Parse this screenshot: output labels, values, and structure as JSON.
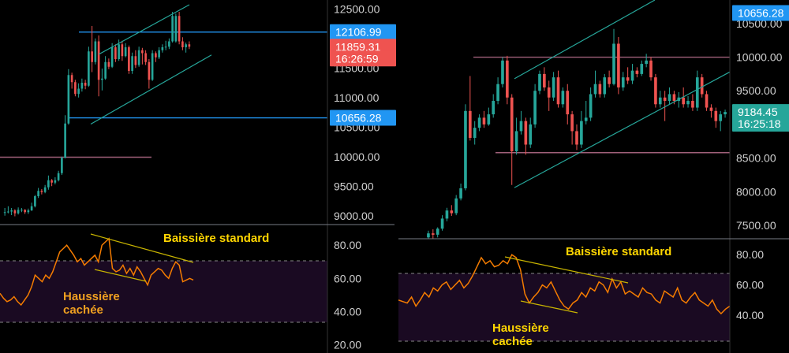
{
  "colors": {
    "background": "#000000",
    "axis_text": "#d0d0d0",
    "divider": "#787b86",
    "up": "#26a69a",
    "down": "#ef5350",
    "rsi": "#f57c00",
    "rsi_band": "#1a0a22",
    "trend": "#26a69a",
    "level_blue": "#2196f3",
    "level_purple": "#a0607a",
    "annotation": "#ffd600"
  },
  "chart_data": [
    {
      "type": "candlestick",
      "panel": "left-price",
      "ylim": [
        8850,
        12650
      ],
      "yticks": [
        12500,
        12000,
        11500,
        11000,
        10500,
        10000,
        9500,
        9000
      ],
      "ytick_labels": [
        "12500.00",
        "12000.00",
        "11500.00",
        "11000.00",
        "10500.00",
        "10000.00",
        "9500.00",
        "9000.00"
      ],
      "price_tags": [
        {
          "value": 12106.99,
          "label": "12106.99",
          "style": "blue"
        },
        {
          "value": 11859.31,
          "label": "11859.31",
          "style": "red"
        },
        {
          "value": 11660,
          "label": "16:26:59",
          "style": "red"
        },
        {
          "value": 10656.28,
          "label": "10656.28",
          "style": "blue"
        }
      ],
      "levels": [
        {
          "value": 12106.99,
          "from": 100,
          "to": 415,
          "color": "blue"
        },
        {
          "value": 10656.28,
          "from": 88,
          "to": 415,
          "color": "blue"
        },
        {
          "value": 9990,
          "from": 0,
          "to": 192,
          "color": "purple"
        }
      ],
      "channels": [
        {
          "a": [
            125,
            11730
          ],
          "b": [
            240,
            12570
          ]
        },
        {
          "a": [
            115,
            10550
          ],
          "b": [
            268,
            11720
          ]
        }
      ],
      "candles": [
        [
          0,
          9050,
          9060,
          9130,
          9000
        ],
        [
          1,
          9070,
          9070,
          9160,
          9040
        ],
        [
          2,
          9070,
          9090,
          9130,
          9010
        ],
        [
          3,
          9090,
          9040,
          9110,
          8990
        ],
        [
          4,
          9040,
          9100,
          9140,
          9020
        ],
        [
          5,
          9100,
          9100,
          9130,
          9060
        ],
        [
          6,
          9100,
          9060,
          9110,
          9030
        ],
        [
          7,
          9060,
          9090,
          9120,
          9030
        ],
        [
          8,
          9090,
          9160,
          9220,
          9080
        ],
        [
          9,
          9160,
          9330,
          9350,
          9140
        ],
        [
          10,
          9330,
          9420,
          9470,
          9300
        ],
        [
          11,
          9420,
          9400,
          9450,
          9360
        ],
        [
          12,
          9400,
          9480,
          9520,
          9380
        ],
        [
          13,
          9480,
          9600,
          9680,
          9440
        ],
        [
          14,
          9600,
          9560,
          9620,
          9500
        ],
        [
          15,
          9560,
          9600,
          9650,
          9530
        ],
        [
          16,
          9600,
          9720,
          9760,
          9580
        ],
        [
          17,
          9720,
          9980,
          10000,
          9690
        ],
        [
          18,
          9980,
          10560,
          10700,
          9970
        ],
        [
          19,
          10560,
          11380,
          11480,
          10540
        ],
        [
          20,
          11380,
          11260,
          11420,
          11150
        ],
        [
          21,
          11260,
          11060,
          11300,
          11020
        ],
        [
          22,
          11060,
          11150,
          11240,
          11000
        ],
        [
          23,
          11150,
          11250,
          11320,
          11100
        ],
        [
          24,
          11250,
          11200,
          11300,
          11140
        ],
        [
          25,
          11200,
          11780,
          11860,
          11180
        ],
        [
          26,
          11780,
          11600,
          12210,
          11430
        ],
        [
          27,
          11600,
          11950,
          12000,
          11560
        ],
        [
          28,
          11950,
          11300,
          12050,
          11020
        ],
        [
          29,
          11300,
          11320,
          11490,
          11120
        ],
        [
          30,
          11320,
          11600,
          11700,
          11300
        ],
        [
          31,
          11600,
          11520,
          11660,
          11480
        ],
        [
          32,
          11520,
          11850,
          11920,
          11500
        ],
        [
          33,
          11850,
          11650,
          11900,
          11600
        ],
        [
          34,
          11650,
          11900,
          11980,
          11620
        ],
        [
          35,
          11900,
          11700,
          11960,
          11620
        ],
        [
          36,
          11700,
          11850,
          11920,
          11680
        ],
        [
          37,
          11850,
          11450,
          11880,
          11400
        ],
        [
          38,
          11450,
          11700,
          11760,
          11400
        ],
        [
          39,
          11700,
          11550,
          11800,
          11500
        ],
        [
          40,
          11550,
          11800,
          11860,
          11520
        ],
        [
          41,
          11800,
          11750,
          11840,
          11560
        ],
        [
          42,
          11750,
          11600,
          11800,
          11550
        ],
        [
          43,
          11600,
          11300,
          11650,
          11150
        ],
        [
          44,
          11300,
          11750,
          11800,
          11280
        ],
        [
          45,
          11750,
          11680,
          11780,
          11600
        ],
        [
          46,
          11680,
          11800,
          11850,
          11650
        ],
        [
          47,
          11800,
          11850,
          11900,
          11760
        ],
        [
          48,
          11850,
          11860,
          11960,
          11800
        ],
        [
          49,
          11860,
          11950,
          12000,
          11820
        ],
        [
          50,
          11950,
          12380,
          12450,
          11930
        ],
        [
          51,
          11950,
          12380,
          12420,
          11930
        ],
        [
          52,
          12380,
          11950,
          12450,
          11900
        ],
        [
          53,
          11950,
          11850,
          12020,
          11800
        ],
        [
          54,
          11850,
          11900,
          11930,
          11760
        ],
        [
          55,
          11900,
          11860,
          11950,
          11820
        ]
      ]
    },
    {
      "type": "line",
      "panel": "left-rsi",
      "ylim": [
        15,
        92
      ],
      "yticks": [
        80,
        60,
        40,
        20
      ],
      "ytick_labels": [
        "80.00",
        "60.00",
        "40.00",
        "20.00"
      ],
      "bands": [
        70,
        30
      ],
      "values": [
        51,
        48,
        46,
        47,
        49,
        46,
        44,
        47,
        50,
        55,
        62,
        60,
        58,
        62,
        60,
        64,
        70,
        76,
        78,
        80,
        77,
        74,
        70,
        72,
        68,
        70,
        72,
        74,
        70,
        80,
        82,
        84,
        66,
        64,
        65,
        68,
        63,
        66,
        62,
        67,
        64,
        60,
        56,
        62,
        64,
        66,
        65,
        62,
        60,
        66,
        70,
        68,
        58,
        59,
        60,
        59
      ],
      "annotations": [
        {
          "text": "Baissière standard",
          "color": "yellow"
        },
        {
          "text": "Haussière",
          "color": "orange"
        },
        {
          "text": "cachée",
          "color": "orange"
        }
      ]
    },
    {
      "type": "candlestick",
      "panel": "right-price",
      "ylim": [
        7300,
        10850
      ],
      "yticks": [
        10500,
        10000,
        9500,
        9000,
        8500,
        8000,
        7500
      ],
      "ytick_labels": [
        "10500.00",
        "10000.00",
        "9500.00",
        "9000.00",
        "8500.00",
        "8000.00",
        "7500.00"
      ],
      "price_tags": [
        {
          "value": 10656.28,
          "label": "10656.28",
          "style": "blue"
        },
        {
          "value": 9184.45,
          "label": "9184.45",
          "style": "green"
        },
        {
          "value": 9010,
          "label": "16:25:18",
          "style": "green"
        }
      ],
      "levels": [
        {
          "value": 10000,
          "from": 600,
          "to": 925,
          "color": "purple"
        },
        {
          "value": 8580,
          "from": 628,
          "to": 925,
          "color": "purple"
        }
      ],
      "channels": [
        {
          "a": [
            652,
            8060
          ],
          "b": [
            925,
            9780
          ]
        },
        {
          "a": [
            652,
            9680
          ],
          "b": [
            830,
            10850
          ]
        }
      ],
      "candles": [
        [
          0,
          7320,
          7380,
          7420,
          7300
        ],
        [
          1,
          7380,
          7360,
          7440,
          7300
        ],
        [
          2,
          7360,
          7450,
          7470,
          7320
        ],
        [
          3,
          7450,
          7600,
          7650,
          7420
        ],
        [
          4,
          7600,
          7720,
          7760,
          7560
        ],
        [
          5,
          7720,
          7680,
          7800,
          7640
        ],
        [
          6,
          7680,
          7900,
          7950,
          7650
        ],
        [
          7,
          7900,
          8050,
          8120,
          7870
        ],
        [
          8,
          8050,
          9200,
          9300,
          8020
        ],
        [
          9,
          9200,
          8800,
          9720,
          8760
        ],
        [
          10,
          8800,
          8950,
          9050,
          8700
        ],
        [
          11,
          8950,
          9100,
          9150,
          8900
        ],
        [
          12,
          9100,
          9000,
          9200,
          8950
        ],
        [
          13,
          9000,
          9150,
          9250,
          8980
        ],
        [
          14,
          9150,
          9350,
          9450,
          9100
        ],
        [
          15,
          9350,
          9600,
          9700,
          9300
        ],
        [
          16,
          9600,
          9950,
          10000,
          9550
        ],
        [
          17,
          9950,
          9400,
          10020,
          9300
        ],
        [
          18,
          9400,
          8600,
          9450,
          8100
        ],
        [
          19,
          8600,
          8900,
          9100,
          8550
        ],
        [
          20,
          8900,
          9050,
          9200,
          8850
        ],
        [
          21,
          9050,
          8700,
          9100,
          8550
        ],
        [
          22,
          8700,
          9000,
          9100,
          8650
        ],
        [
          23,
          9000,
          9500,
          9600,
          8950
        ],
        [
          24,
          9500,
          9750,
          9800,
          9450
        ],
        [
          25,
          9750,
          9550,
          9850,
          9500
        ],
        [
          26,
          9550,
          9400,
          9650,
          9200
        ],
        [
          27,
          9400,
          9700,
          9780,
          9350
        ],
        [
          28,
          9700,
          9300,
          9800,
          9250
        ],
        [
          29,
          9300,
          9500,
          9550,
          9250
        ],
        [
          30,
          9500,
          9150,
          9600,
          9000
        ],
        [
          31,
          9150,
          8900,
          9200,
          8700
        ],
        [
          32,
          8900,
          8700,
          9000,
          8620
        ],
        [
          33,
          8700,
          9050,
          9200,
          8650
        ],
        [
          34,
          9050,
          9100,
          9350,
          9000
        ],
        [
          35,
          9100,
          9450,
          9550,
          9050
        ],
        [
          36,
          9450,
          9600,
          9800,
          9400
        ],
        [
          37,
          9600,
          9450,
          9650,
          9400
        ],
        [
          38,
          9450,
          9700,
          9750,
          9400
        ],
        [
          39,
          9700,
          9600,
          9800,
          9550
        ],
        [
          40,
          9600,
          10200,
          10420,
          9580
        ],
        [
          41,
          10200,
          9550,
          10300,
          9450
        ],
        [
          42,
          9550,
          9700,
          9780,
          9500
        ],
        [
          43,
          9700,
          9650,
          9850,
          9600
        ],
        [
          44,
          9650,
          9800,
          9900,
          9600
        ],
        [
          45,
          9800,
          9750,
          9850,
          9700
        ],
        [
          46,
          9750,
          9900,
          9950,
          9720
        ],
        [
          47,
          9900,
          9950,
          10050,
          9850
        ],
        [
          48,
          9950,
          9700,
          10000,
          9650
        ],
        [
          49,
          9700,
          9300,
          9750,
          9250
        ],
        [
          50,
          9300,
          9400,
          9500,
          9250
        ],
        [
          51,
          9400,
          9350,
          9500,
          9050
        ],
        [
          52,
          9350,
          9450,
          9550,
          9300
        ],
        [
          53,
          9450,
          9350,
          9500,
          9300
        ],
        [
          54,
          9350,
          9400,
          9480,
          9250
        ],
        [
          55,
          9400,
          9300,
          9550,
          9250
        ],
        [
          56,
          9300,
          9350,
          9420,
          9250
        ],
        [
          57,
          9350,
          9250,
          9450,
          9200
        ],
        [
          58,
          9250,
          9700,
          9800,
          9200
        ],
        [
          59,
          9700,
          9450,
          9750,
          9400
        ],
        [
          60,
          9450,
          9250,
          9500,
          9200
        ],
        [
          61,
          9250,
          9200,
          9300,
          9100
        ],
        [
          62,
          9200,
          9050,
          9250,
          8950
        ],
        [
          63,
          9050,
          9150,
          9200,
          8900
        ],
        [
          64,
          9150,
          9185,
          9220,
          9100
        ]
      ]
    },
    {
      "type": "line",
      "panel": "right-rsi",
      "ylim": [
        15,
        90
      ],
      "yticks": [
        80,
        60,
        40
      ],
      "ytick_labels": [
        "80.00",
        "60.00",
        "40.00"
      ],
      "bands": [
        70,
        30
      ],
      "values": [
        50,
        49,
        48,
        52,
        46,
        50,
        55,
        52,
        58,
        56,
        60,
        62,
        57,
        60,
        63,
        58,
        61,
        66,
        72,
        78,
        74,
        76,
        72,
        73,
        76,
        74,
        80,
        78,
        70,
        54,
        48,
        52,
        55,
        60,
        58,
        62,
        56,
        50,
        46,
        44,
        48,
        50,
        55,
        52,
        58,
        56,
        62,
        60,
        55,
        64,
        58,
        62,
        54,
        56,
        54,
        52,
        58,
        55,
        54,
        50,
        48,
        56,
        54,
        52,
        58,
        50,
        48,
        52,
        55,
        50,
        48,
        46,
        50,
        44,
        41,
        44,
        46
      ],
      "annotations": [
        {
          "text": "Baissière standard",
          "color": "yellow"
        },
        {
          "text": "Haussière",
          "color": "yellow"
        },
        {
          "text": "cachée",
          "color": "yellow"
        }
      ]
    }
  ]
}
